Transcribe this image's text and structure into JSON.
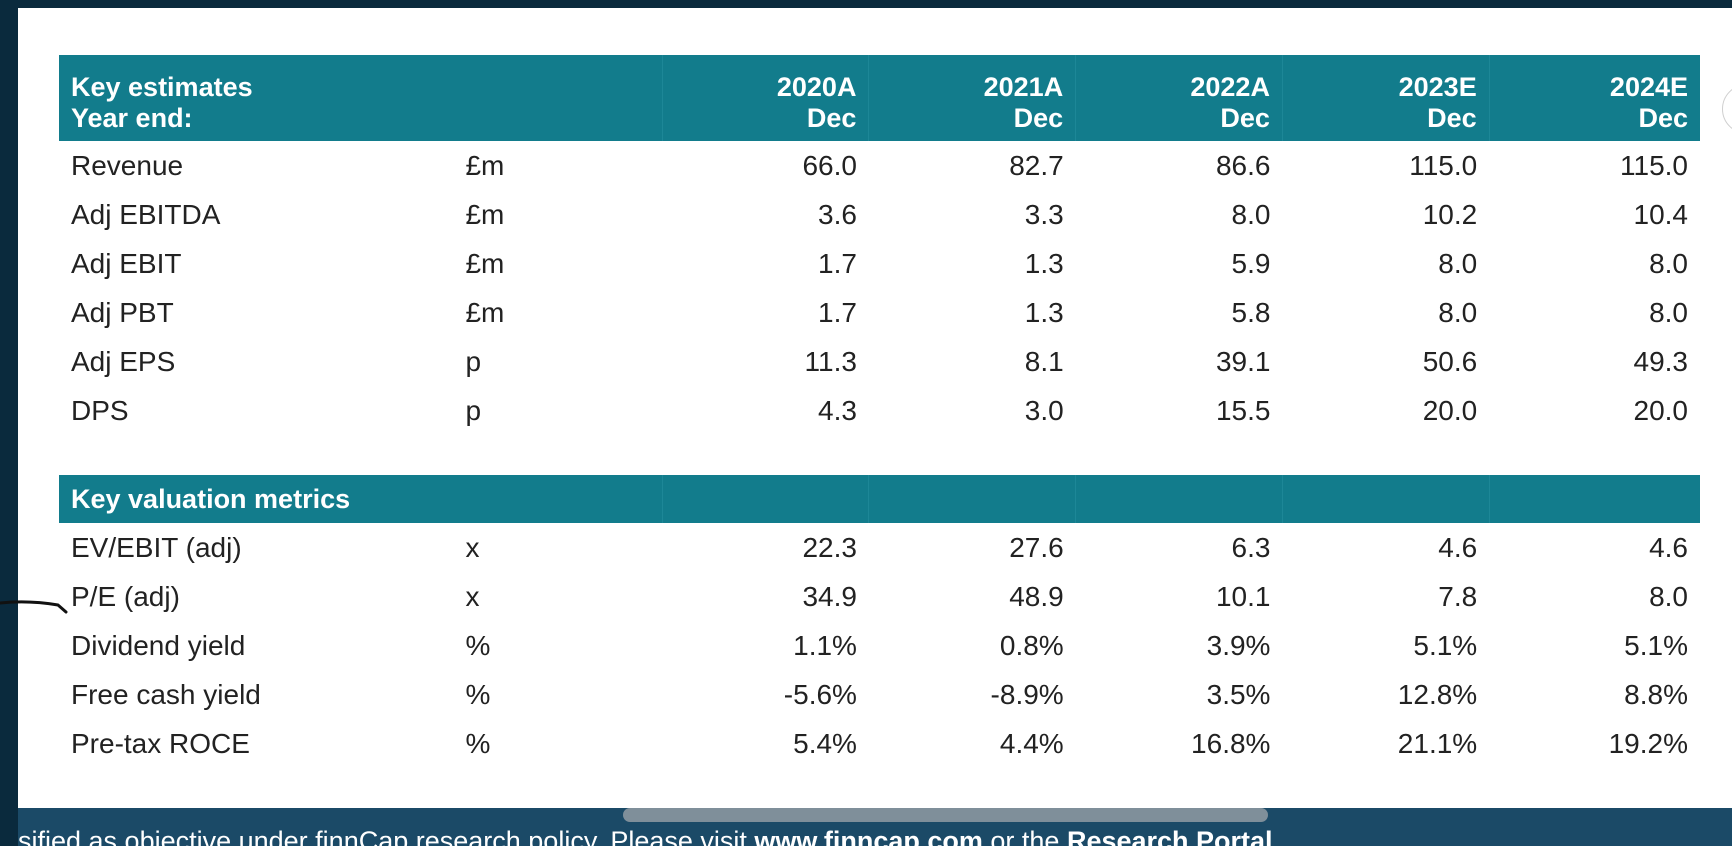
{
  "estimates": {
    "title": "Key estimates",
    "year_end_label": "Year end:",
    "years": [
      "2020A",
      "2021A",
      "2022A",
      "2023E",
      "2024E"
    ],
    "year_ends": [
      "Dec",
      "Dec",
      "Dec",
      "Dec",
      "Dec"
    ],
    "rows": [
      {
        "label": "Revenue",
        "unit": "£m",
        "values": [
          "66.0",
          "82.7",
          "86.6",
          "115.0",
          "115.0"
        ]
      },
      {
        "label": "Adj EBITDA",
        "unit": "£m",
        "values": [
          "3.6",
          "3.3",
          "8.0",
          "10.2",
          "10.4"
        ]
      },
      {
        "label": "Adj EBIT",
        "unit": "£m",
        "values": [
          "1.7",
          "1.3",
          "5.9",
          "8.0",
          "8.0"
        ]
      },
      {
        "label": "Adj PBT",
        "unit": "£m",
        "values": [
          "1.7",
          "1.3",
          "5.8",
          "8.0",
          "8.0"
        ]
      },
      {
        "label": "Adj EPS",
        "unit": "p",
        "values": [
          "11.3",
          "8.1",
          "39.1",
          "50.6",
          "49.3"
        ]
      },
      {
        "label": "DPS",
        "unit": "p",
        "values": [
          "4.3",
          "3.0",
          "15.5",
          "20.0",
          "20.0"
        ]
      }
    ]
  },
  "valuation": {
    "title": "Key valuation metrics",
    "rows": [
      {
        "label": "EV/EBIT (adj)",
        "unit": "x",
        "values": [
          "22.3",
          "27.6",
          "6.3",
          "4.6",
          "4.6"
        ]
      },
      {
        "label": "P/E (adj)",
        "unit": "x",
        "values": [
          "34.9",
          "48.9",
          "10.1",
          "7.8",
          "8.0"
        ]
      },
      {
        "label": "Dividend yield",
        "unit": "%",
        "values": [
          "1.1%",
          "0.8%",
          "3.9%",
          "5.1%",
          "5.1%"
        ]
      },
      {
        "label": "Free cash yield",
        "unit": "%",
        "values": [
          "-5.6%",
          "-8.9%",
          "3.5%",
          "12.8%",
          "8.8%"
        ]
      },
      {
        "label": "Pre-tax ROCE",
        "unit": "%",
        "values": [
          "5.4%",
          "4.4%",
          "16.8%",
          "21.1%",
          "19.2%"
        ]
      }
    ]
  },
  "footer": {
    "text_1": "sified as objective under finnCap research policy. Please visit ",
    "link_1": "www.finncap.com",
    "text_2": " or the ",
    "link_2": "Research Portal"
  },
  "colors": {
    "header_teal": "#127c8c",
    "frame_dark": "#0a2a3d",
    "footer_blue": "#1b4a67"
  }
}
